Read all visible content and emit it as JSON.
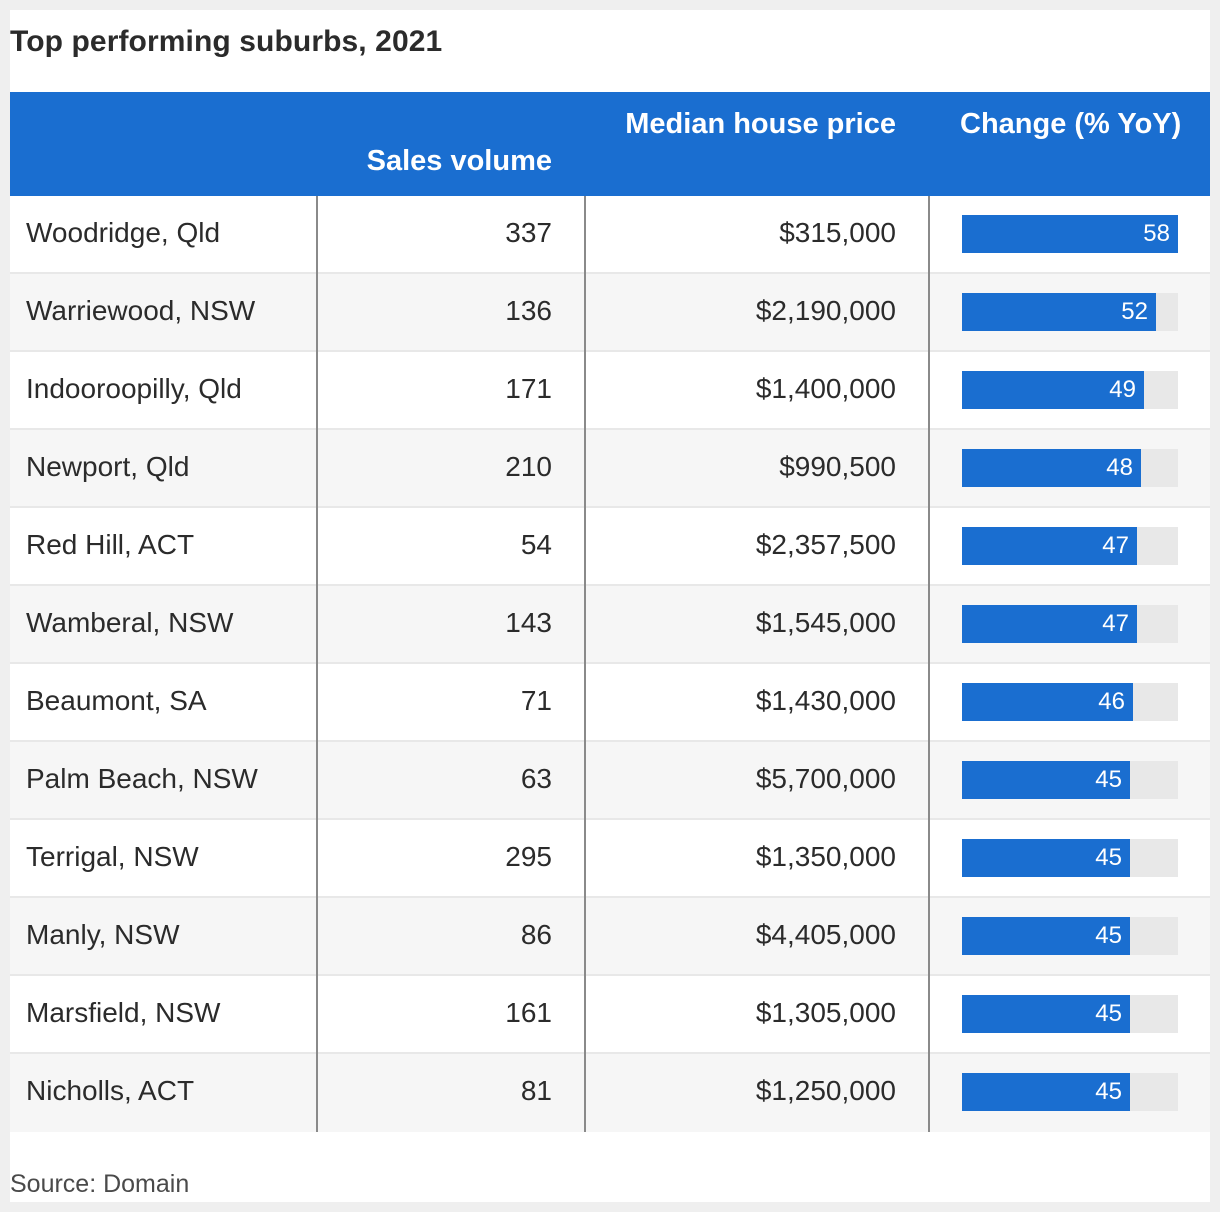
{
  "title": "Top performing suburbs, 2021",
  "source": "Source: Domain",
  "colors": {
    "header_bg": "#1a6ed0",
    "bar": "#1a6ed0",
    "bar_track": "#e8e8e8"
  },
  "chart_data": {
    "type": "table",
    "title": "Top performing suburbs, 2021",
    "columns": [
      "",
      "Sales volume",
      "Median house price",
      "Change (% YoY)"
    ],
    "bar_max": 58,
    "rows": [
      {
        "suburb": "Woodridge, Qld",
        "sales": "337",
        "price": "$315,000",
        "change": 58
      },
      {
        "suburb": "Warriewood, NSW",
        "sales": "136",
        "price": "$2,190,000",
        "change": 52
      },
      {
        "suburb": "Indooroopilly, Qld",
        "sales": "171",
        "price": "$1,400,000",
        "change": 49
      },
      {
        "suburb": "Newport, Qld",
        "sales": "210",
        "price": "$990,500",
        "change": 48
      },
      {
        "suburb": "Red Hill, ACT",
        "sales": "54",
        "price": "$2,357,500",
        "change": 47
      },
      {
        "suburb": "Wamberal, NSW",
        "sales": "143",
        "price": "$1,545,000",
        "change": 47
      },
      {
        "suburb": "Beaumont, SA",
        "sales": "71",
        "price": "$1,430,000",
        "change": 46
      },
      {
        "suburb": "Palm Beach, NSW",
        "sales": "63",
        "price": "$5,700,000",
        "change": 45
      },
      {
        "suburb": "Terrigal, NSW",
        "sales": "295",
        "price": "$1,350,000",
        "change": 45
      },
      {
        "suburb": "Manly, NSW",
        "sales": "86",
        "price": "$4,405,000",
        "change": 45
      },
      {
        "suburb": "Marsfield, NSW",
        "sales": "161",
        "price": "$1,305,000",
        "change": 45
      },
      {
        "suburb": "Nicholls, ACT",
        "sales": "81",
        "price": "$1,250,000",
        "change": 45
      }
    ]
  }
}
